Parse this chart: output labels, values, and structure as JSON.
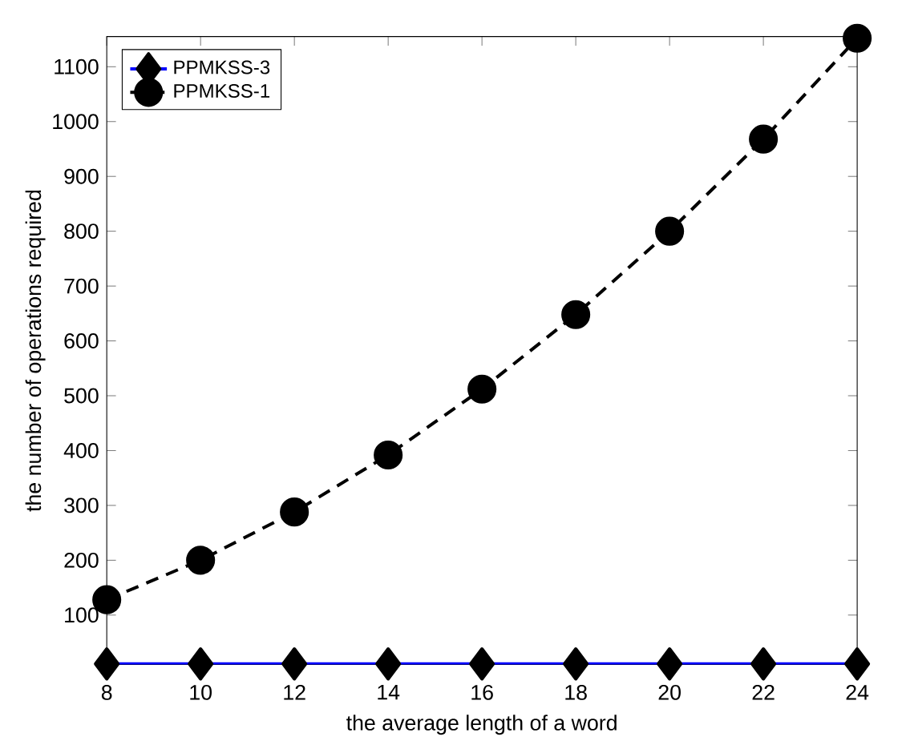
{
  "chart_data": {
    "type": "line",
    "xlabel": "the average length of a word",
    "ylabel": "the number of operations required",
    "x": [
      8,
      10,
      12,
      14,
      16,
      18,
      20,
      22,
      24
    ],
    "series": [
      {
        "name": "PPMKSS-3",
        "color": "#0000ff",
        "values": [
          11,
          11,
          11,
          11,
          11,
          11,
          11,
          11,
          11
        ],
        "marker": "diamond",
        "line_style": "solid"
      },
      {
        "name": "PPMKSS-1",
        "color": "#000000",
        "values": [
          128,
          200,
          288,
          392,
          512,
          648,
          800,
          968,
          1152
        ],
        "marker": "circle",
        "line_style": "dashed"
      }
    ],
    "xlim": [
      8,
      24
    ],
    "xticks": [
      8,
      10,
      12,
      14,
      16,
      18,
      20,
      22,
      24
    ],
    "ylim": [
      10,
      1155
    ],
    "yticks": [
      100,
      200,
      300,
      400,
      500,
      600,
      700,
      800,
      900,
      1000,
      1100
    ],
    "grid": false,
    "legend": "top left"
  }
}
